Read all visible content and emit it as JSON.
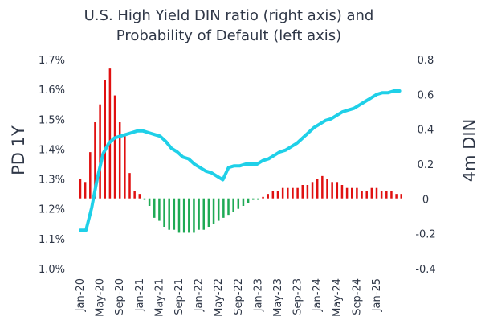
{
  "chart_data": {
    "type": "bar+line",
    "title_lines": [
      "U.S. High Yield DIN ratio (right axis) and",
      "Probability of Default (left axis)"
    ],
    "ylabel_left": "PD 1Y",
    "ylabel_right": "4m DIN",
    "ylim_left": [
      1.0,
      1.7
    ],
    "yticks_left": [
      "1.7%",
      "1.6%",
      "1.5%",
      "1.4%",
      "1.3%",
      "1.2%",
      "1.1%",
      "1.0%"
    ],
    "ylim_right": [
      -0.4,
      0.8
    ],
    "yticks_right": [
      "0.8",
      "0.6",
      "0.4",
      "0.2",
      "0",
      "-0.2",
      "-0.4"
    ],
    "bar_baseline": 1.235,
    "x_tick_labels": [
      "Jan-20",
      "May-20",
      "Sep-20",
      "Jan-21",
      "May-21",
      "Sep-21",
      "Jan-22",
      "May-22",
      "Sep-22",
      "Jan-23",
      "May-23",
      "Sep-23",
      "Jan-24",
      "May-24",
      "Sep-24",
      "Jan-25"
    ],
    "bar_series": {
      "name": "Probability of Default",
      "axis": "left",
      "positive_color": "#e01010",
      "negative_color": "#1faa55",
      "values": [
        1.3,
        1.29,
        1.39,
        1.49,
        1.55,
        1.63,
        1.67,
        1.58,
        1.49,
        1.45,
        1.32,
        1.26,
        1.25,
        1.23,
        1.21,
        1.17,
        1.16,
        1.14,
        1.13,
        1.13,
        1.12,
        1.12,
        1.12,
        1.12,
        1.13,
        1.13,
        1.14,
        1.15,
        1.16,
        1.17,
        1.18,
        1.19,
        1.2,
        1.21,
        1.22,
        1.23,
        1.23,
        1.24,
        1.25,
        1.26,
        1.26,
        1.27,
        1.27,
        1.27,
        1.27,
        1.28,
        1.28,
        1.29,
        1.3,
        1.31,
        1.3,
        1.29,
        1.29,
        1.28,
        1.27,
        1.27,
        1.27,
        1.26,
        1.26,
        1.27,
        1.27,
        1.26,
        1.26,
        1.26,
        1.25,
        1.25
      ]
    },
    "line_series": {
      "name": "DIN ratio",
      "axis": "right",
      "color": "#1fd0e8",
      "values": [
        -0.18,
        -0.18,
        -0.05,
        0.12,
        0.26,
        0.32,
        0.35,
        0.36,
        0.37,
        0.38,
        0.39,
        0.39,
        0.38,
        0.37,
        0.36,
        0.33,
        0.29,
        0.27,
        0.24,
        0.23,
        0.2,
        0.18,
        0.16,
        0.15,
        0.13,
        0.11,
        0.18,
        0.19,
        0.19,
        0.2,
        0.2,
        0.2,
        0.22,
        0.23,
        0.25,
        0.27,
        0.28,
        0.3,
        0.32,
        0.35,
        0.38,
        0.41,
        0.43,
        0.45,
        0.46,
        0.48,
        0.5,
        0.51,
        0.52,
        0.54,
        0.56,
        0.58,
        0.6,
        0.61,
        0.61,
        0.62,
        0.62
      ]
    }
  }
}
